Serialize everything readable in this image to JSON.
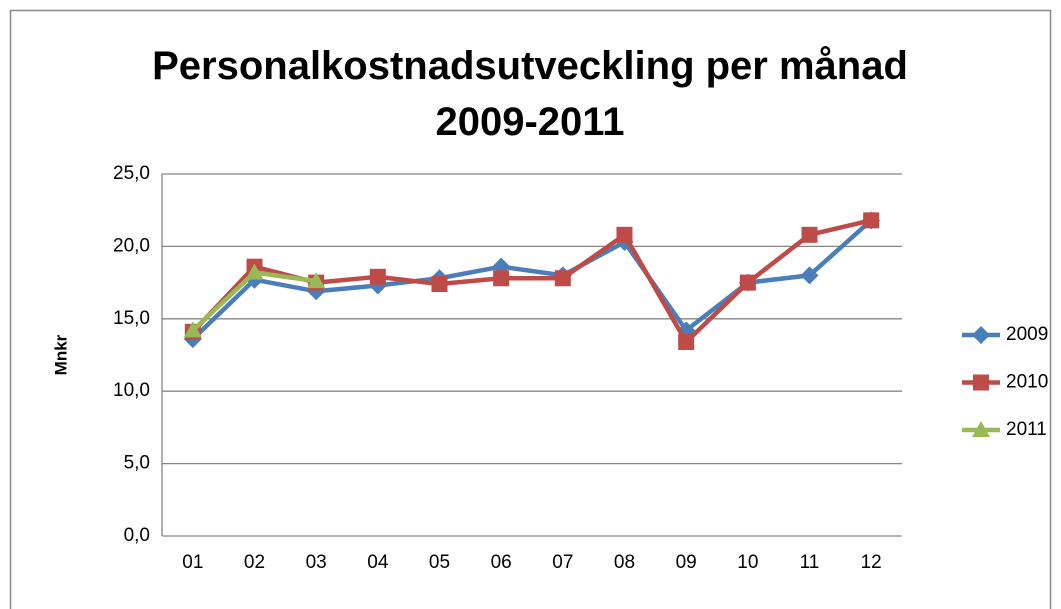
{
  "chart_data": {
    "type": "line",
    "title": "Personalkostnadsutveckling per månad 2009-2011",
    "y_label": "Mnkr",
    "categories": [
      "01",
      "02",
      "03",
      "04",
      "05",
      "06",
      "07",
      "08",
      "09",
      "10",
      "11",
      "12"
    ],
    "series": [
      {
        "name": "2009",
        "color": "#4a7ebb",
        "marker": "diamond",
        "values": [
          13.6,
          17.7,
          16.9,
          17.3,
          17.8,
          18.6,
          18.0,
          20.3,
          14.2,
          17.5,
          18.0,
          21.8
        ]
      },
      {
        "name": "2010",
        "color": "#be4b48",
        "marker": "square",
        "values": [
          14.1,
          18.6,
          17.5,
          17.9,
          17.4,
          17.8,
          17.8,
          20.8,
          13.4,
          17.5,
          20.8,
          21.8
        ]
      },
      {
        "name": "2011",
        "color": "#98b954",
        "marker": "triangle",
        "values": [
          14.2,
          18.2,
          17.6,
          null,
          null,
          null,
          null,
          null,
          null,
          null,
          null,
          null
        ]
      }
    ],
    "ylim": [
      0,
      25
    ],
    "yticks": [
      {
        "value": 0,
        "label": "0,0"
      },
      {
        "value": 5,
        "label": "5,0"
      },
      {
        "value": 10,
        "label": "10,0"
      },
      {
        "value": 15,
        "label": "15,0"
      },
      {
        "value": 20,
        "label": "20,0"
      },
      {
        "value": 25,
        "label": "25,0"
      }
    ],
    "grid": true,
    "legend": "right"
  }
}
